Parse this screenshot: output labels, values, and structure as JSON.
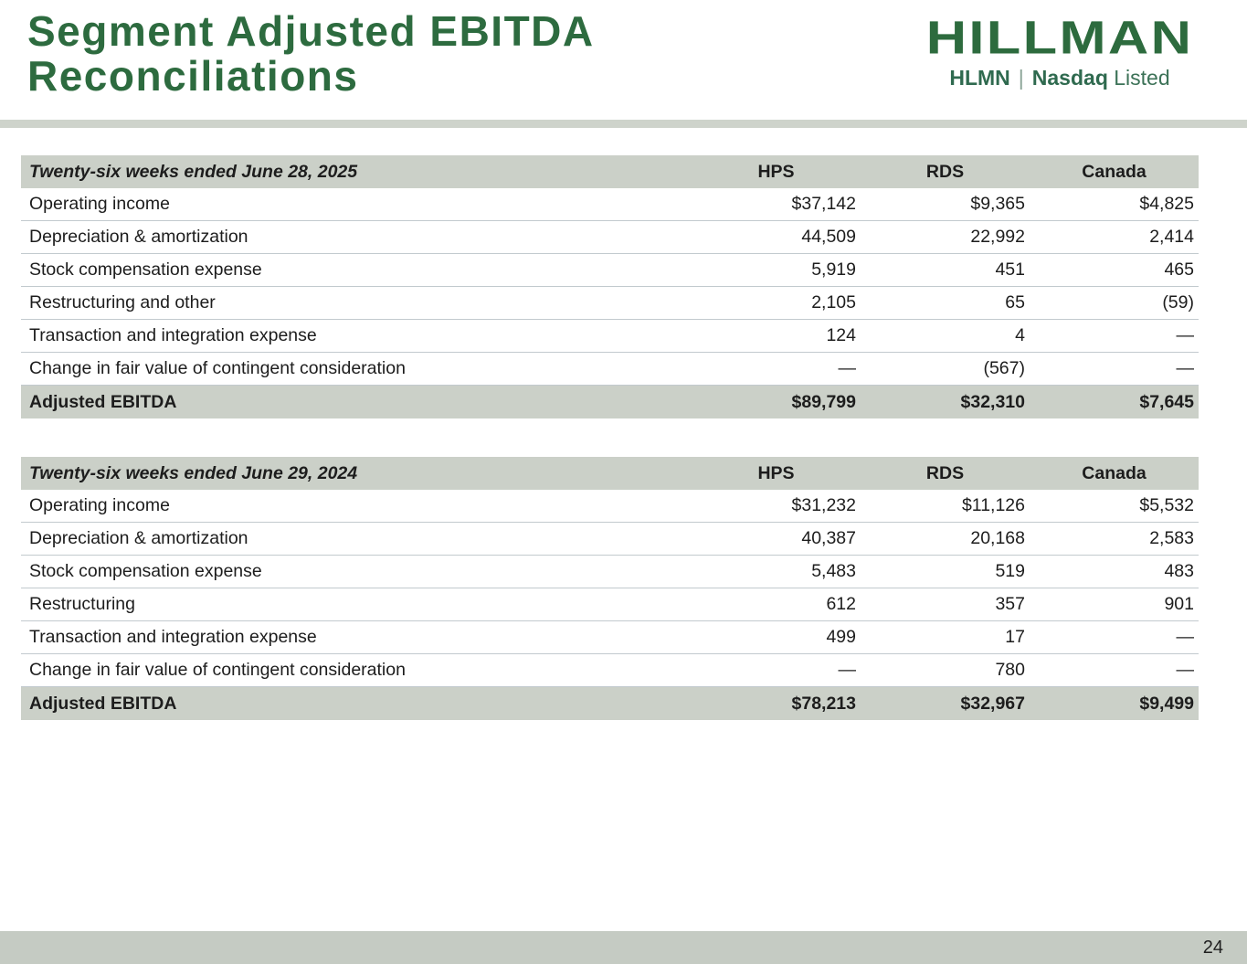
{
  "header": {
    "title": "Segment Adjusted EBITDA Reconciliations",
    "logo": {
      "wordmark": "HILLMAN",
      "ticker": "HLMN",
      "separator": "|",
      "listing_bold": "Nasdaq",
      "listing_regular": "Listed"
    }
  },
  "tables": [
    {
      "period_label": "Twenty-six weeks ended June 28, 2025",
      "columns": [
        "HPS",
        "RDS",
        "Canada"
      ],
      "rows": [
        {
          "label": "Operating income",
          "values": [
            "$37,142",
            "$9,365",
            "$4,825"
          ]
        },
        {
          "label": "Depreciation & amortization",
          "values": [
            "44,509",
            "22,992",
            "2,414"
          ]
        },
        {
          "label": "Stock compensation expense",
          "values": [
            "5,919",
            "451",
            "465"
          ]
        },
        {
          "label": "Restructuring and other",
          "values": [
            "2,105",
            "65",
            "(59)"
          ]
        },
        {
          "label": "Transaction and integration expense",
          "values": [
            "124",
            "4",
            "—"
          ]
        },
        {
          "label": "Change in fair value of contingent consideration",
          "values": [
            "—",
            "(567)",
            "—"
          ]
        }
      ],
      "total": {
        "label": "Adjusted EBITDA",
        "values": [
          "$89,799",
          "$32,310",
          "$7,645"
        ]
      }
    },
    {
      "period_label": "Twenty-six weeks ended June 29, 2024",
      "columns": [
        "HPS",
        "RDS",
        "Canada"
      ],
      "rows": [
        {
          "label": "Operating income",
          "values": [
            "$31,232",
            "$11,126",
            "$5,532"
          ]
        },
        {
          "label": "Depreciation & amortization",
          "values": [
            "40,387",
            "20,168",
            "2,583"
          ]
        },
        {
          "label": "Stock compensation expense",
          "values": [
            "5,483",
            "519",
            "483"
          ]
        },
        {
          "label": "Restructuring",
          "values": [
            "612",
            "357",
            "901"
          ]
        },
        {
          "label": "Transaction and integration expense",
          "values": [
            "499",
            "17",
            "—"
          ]
        },
        {
          "label": "Change in fair value of contingent consideration",
          "values": [
            "—",
            "780",
            "—"
          ]
        }
      ],
      "total": {
        "label": "Adjusted EBITDA",
        "values": [
          "$78,213",
          "$32,967",
          "$9,499"
        ]
      }
    }
  ],
  "footer": {
    "page_number": "24"
  },
  "colors": {
    "brand_green": "#2d6b3f",
    "table_band_gray": "#cbd0c8",
    "divider_gray": "#ced3cb",
    "footer_gray": "#c5cbc3",
    "row_line": "#c2cace"
  }
}
